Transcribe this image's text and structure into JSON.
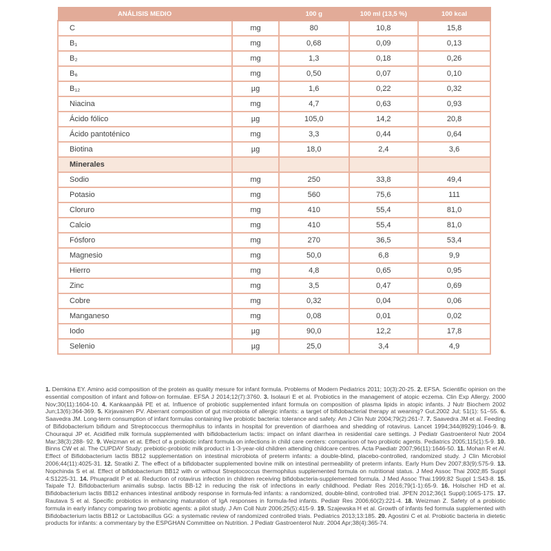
{
  "table": {
    "title": "ANÁLISIS MEDIO",
    "columns": [
      "100 g",
      "100 ml (13,5 %)",
      "100 kcal"
    ],
    "unit_header": "",
    "rows": [
      {
        "name": "C",
        "unit": "mg",
        "per_100g": "80",
        "per_100ml": "10,8",
        "per_100kcal": "15,8"
      },
      {
        "name": "B₁",
        "unit": "mg",
        "per_100g": "0,68",
        "per_100ml": "0,09",
        "per_100kcal": "0,13"
      },
      {
        "name": "B₂",
        "unit": "mg",
        "per_100g": "1,3",
        "per_100ml": "0,18",
        "per_100kcal": "0,26"
      },
      {
        "name": "B₆",
        "unit": "mg",
        "per_100g": "0,50",
        "per_100ml": "0,07",
        "per_100kcal": "0,10"
      },
      {
        "name": "B₁₂",
        "unit": "µg",
        "per_100g": "1,6",
        "per_100ml": "0,22",
        "per_100kcal": "0,32"
      },
      {
        "name": "Niacina",
        "unit": "mg",
        "per_100g": "4,7",
        "per_100ml": "0,63",
        "per_100kcal": "0,93"
      },
      {
        "name": "Ácido fólico",
        "unit": "µg",
        "per_100g": "105,0",
        "per_100ml": "14,2",
        "per_100kcal": "20,8"
      },
      {
        "name": "Ácido pantoténico",
        "unit": "mg",
        "per_100g": "3,3",
        "per_100ml": "0,44",
        "per_100kcal": "0,64"
      },
      {
        "name": "Biotina",
        "unit": "µg",
        "per_100g": "18,0",
        "per_100ml": "2,4",
        "per_100kcal": "3,6"
      },
      {
        "section": "Minerales"
      },
      {
        "name": "Sodio",
        "unit": "mg",
        "per_100g": "250",
        "per_100ml": "33,8",
        "per_100kcal": "49,4"
      },
      {
        "name": "Potasio",
        "unit": "mg",
        "per_100g": "560",
        "per_100ml": "75,6",
        "per_100kcal": "111"
      },
      {
        "name": "Cloruro",
        "unit": "mg",
        "per_100g": "410",
        "per_100ml": "55,4",
        "per_100kcal": "81,0"
      },
      {
        "name": "Calcio",
        "unit": "mg",
        "per_100g": "410",
        "per_100ml": "55,4",
        "per_100kcal": "81,0"
      },
      {
        "name": "Fósforo",
        "unit": "mg",
        "per_100g": "270",
        "per_100ml": "36,5",
        "per_100kcal": "53,4"
      },
      {
        "name": "Magnesio",
        "unit": "mg",
        "per_100g": "50,0",
        "per_100ml": "6,8",
        "per_100kcal": "9,9"
      },
      {
        "name": "Hierro",
        "unit": "mg",
        "per_100g": "4,8",
        "per_100ml": "0,65",
        "per_100kcal": "0,95"
      },
      {
        "name": "Zinc",
        "unit": "mg",
        "per_100g": "3,5",
        "per_100ml": "0,47",
        "per_100kcal": "0,69"
      },
      {
        "name": "Cobre",
        "unit": "mg",
        "per_100g": "0,32",
        "per_100ml": "0,04",
        "per_100kcal": "0,06"
      },
      {
        "name": "Manganeso",
        "unit": "mg",
        "per_100g": "0,08",
        "per_100ml": "0,01",
        "per_100kcal": "0,02"
      },
      {
        "name": "Iodo",
        "unit": "µg",
        "per_100g": "90,0",
        "per_100ml": "12,2",
        "per_100kcal": "17,8"
      },
      {
        "name": "Selenio",
        "unit": "µg",
        "per_100g": "25,0",
        "per_100ml": "3,4",
        "per_100kcal": "4,9"
      }
    ]
  },
  "references": {
    "items": [
      {
        "num": "1.",
        "text": "Demkina EY. Amino acid composition of the protein as quality mesure for infant formula. Problems of Modern Pediatrics 2011; 10(3):20-25."
      },
      {
        "num": "2.",
        "text": "EFSA. Scientific opinion on the essential composition of infant and follow-on formulae. EFSA J 2014;12(7):3760."
      },
      {
        "num": "3.",
        "text": "Isolauri E et al. Probiotics in the management of atopic eczema. Clin Exp Allergy. 2000 Nov;30(11):1604-10."
      },
      {
        "num": "4.",
        "text": "Kankaanpää PE et at. Influence of probiotic supplemented infant formula on composition of plasma lipids in atopic infants. J Nutr Biochem 2002 Jun;13(6):364-369."
      },
      {
        "num": "5.",
        "text": "Kirjavainen PV. Aberrant composition of gut microbiota of allergic infants: a target of bifidobacterial therapy at weaning? Gut.2002 Jul; 51(1): 51–55."
      },
      {
        "num": "6.",
        "text": "Saavedra JM. Long-term consumption of infant formulas containing live probiotic bacteria: tolerance and safety. Am J Clin Nutr 2004;79(2):261-7."
      },
      {
        "num": "7.",
        "text": "Saavedra JM et al. Feeding of Bifidobacterium bifidum and Streptococcus thermophilus to infants in hospital for prevention of diarrhoea and shedding of rotavirus. Lancet 1994;344(8929):1046-9."
      },
      {
        "num": "8.",
        "text": "Chouraqui JP et. Acidified milk formula supplemented with bifidobacterium lactis: impact on infant diarrhea in residential care settings. J Pediatr Gastroenterol Nutr 2004 Mar;38(3):288- 92."
      },
      {
        "num": "9.",
        "text": "Weizman et at. Effect of a probiotic infant formula on infections in child care centers: comparison of two probiotic agents. Pediatrics 2005;115(1):5-9."
      },
      {
        "num": "10.",
        "text": "Binns CW et al. The CUPDAY Study: prebiotic-probiotic milk product in 1-3-year-old children attending childcare centres. Acta Paediatr 2007;96(11):1646-50."
      },
      {
        "num": "11.",
        "text": "Mohan R et Al. Effect of Bifidobacterium lactis BB12 supplementation on intestinal microbiota of preterm infants: a double-blind, placebo-controlled, randomized study. J Clin Microbiol 2006;44(11):4025-31."
      },
      {
        "num": "12.",
        "text": "Stratiki Z. The effect of a bifidobacter supplemented bovine milk on intestinal permeability of preterm infants. Early Hum Dev 2007;83(9):575-9."
      },
      {
        "num": "13.",
        "text": "Nopchinda S et al. Effect of bifidobacterium BB12 with or without Streptococcus thermophilus supplemented formula on nutritional status. J Med Assoc Thai 2002;85 Suppl 4:S1225-31."
      },
      {
        "num": "14.",
        "text": "Phuapradit P et al. Reduction of rotavirus infection in children receiving bifidobacteria-supplemented formula. J Med Assoc Thai.1999;82 Suppl 1:S43-8."
      },
      {
        "num": "15.",
        "text": "Taipale TJ. Bifidobacterium animalis subsp. lactis BB-12 in reducing the risk of infections in early childhood. Pediatr Res 2016;79(1-1):65-9."
      },
      {
        "num": "16.",
        "text": "Holscher HD et al. Bifidobacterium lactis BB12 enhances intestinal antibody response in formula-fed infants: a randomized, double-blind, controlled trial. JPEN 2012;36(1 Suppl):106S-17S."
      },
      {
        "num": "17.",
        "text": "Rautava S et al. Specific probiotics in enhancing maturation of IgA responses in formula-fed infants. Pediatr Res 2006;60(2):221-4."
      },
      {
        "num": "18.",
        "text": "Weizman Z. Safety of a probiotic formula in early infancy comparing two probiotic agents: a pilot study. J Am Coll Nutr 2006;25(5):415-9."
      },
      {
        "num": "19.",
        "text": "Szajewska H et al. Growth of infants fed formula supplemented with Bifidobacterium lactis BB12 or Lactobacillus GG: a systematic review of randomized controlled trials. Pediatrics 2013;13:185."
      },
      {
        "num": "20.",
        "text": "Agostini C et al. Probiotic bacteria in dietetic products for infants: a commentary by the ESPGHAN Committee on Nutrition. J Pediatr Gastroenterol Nutr. 2004 Apr;38(4):365-74."
      }
    ]
  },
  "colors": {
    "header_bg": "#E2AB98",
    "header_text": "#FFFFFF",
    "border": "#EAB5A1",
    "section_bg": "#F8E7DC",
    "text": "#3F3F3F",
    "ref_text": "#4A4A4A"
  }
}
